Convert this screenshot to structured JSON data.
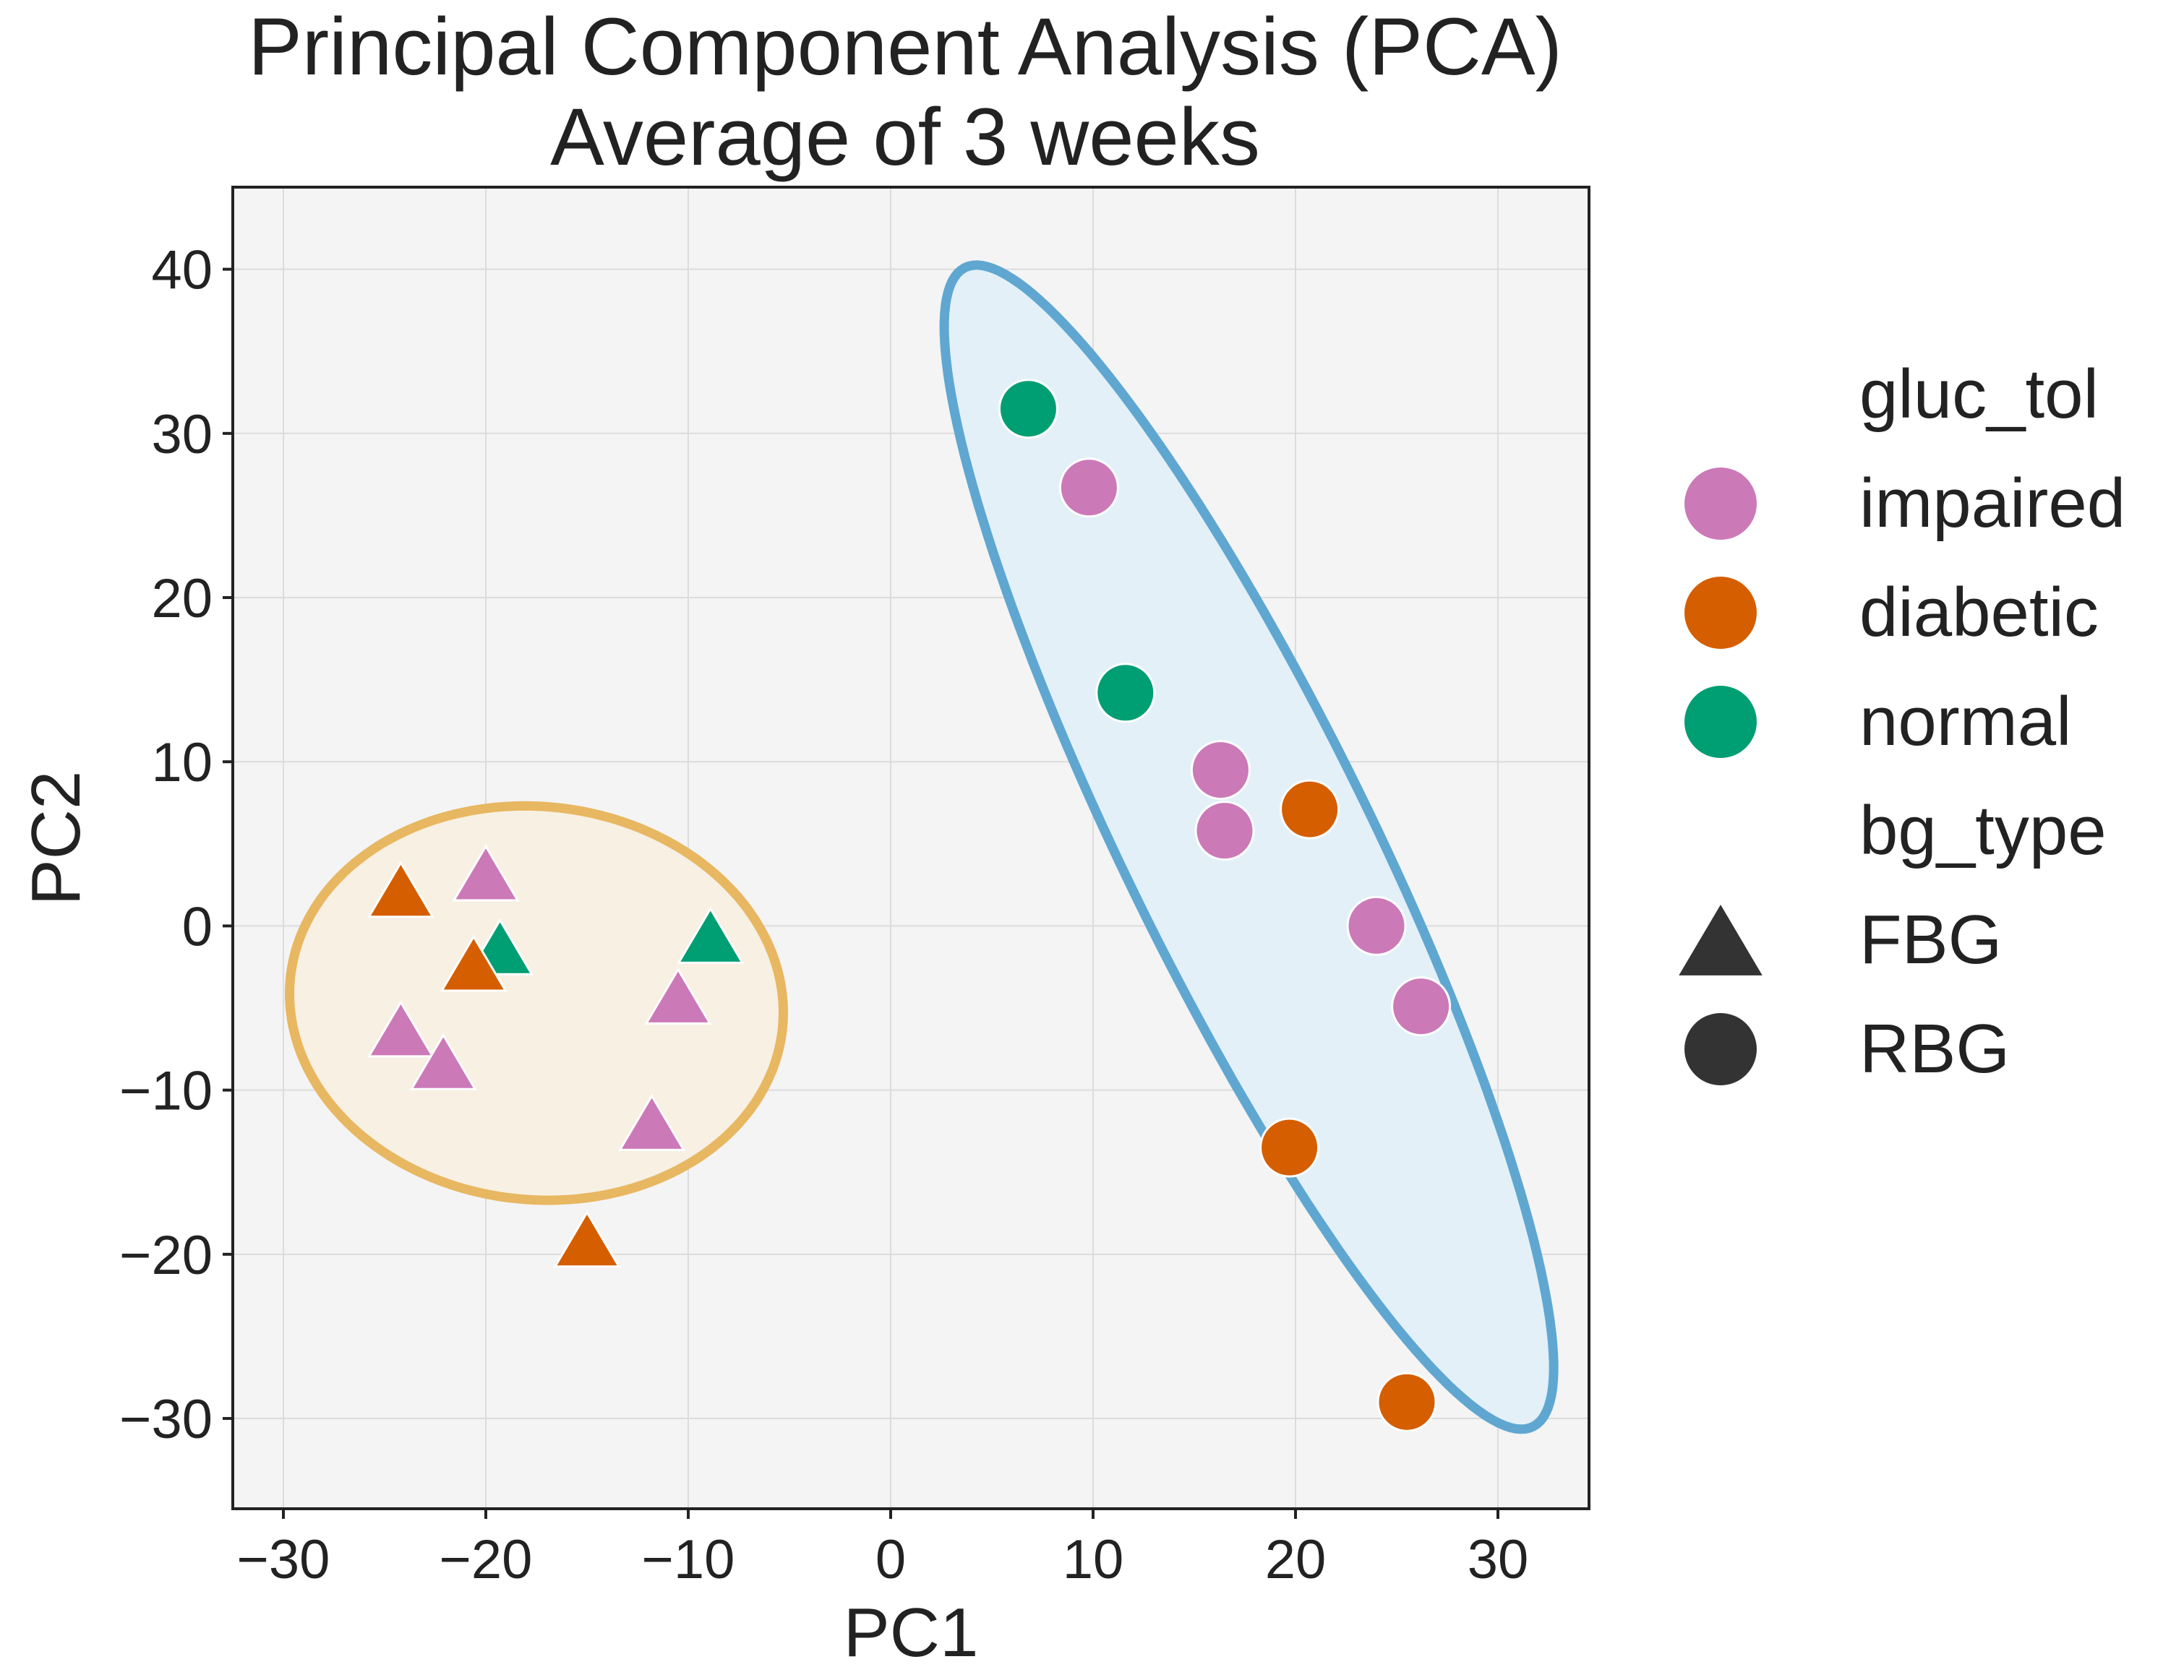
{
  "chart_data": {
    "type": "scatter",
    "title": "Principal Component Analysis (PCA)",
    "subtitle": "Average of 3 weeks",
    "xlabel": "PC1",
    "ylabel": "PC2",
    "xlim": [
      -32.5,
      34.5
    ],
    "ylim": [
      -35.5,
      45
    ],
    "xticks": [
      -30,
      -20,
      -10,
      0,
      10,
      20,
      30
    ],
    "yticks": [
      -30,
      -20,
      -10,
      0,
      10,
      20,
      30,
      40
    ],
    "xtick_labels": [
      "−30",
      "−20",
      "−10",
      "0",
      "10",
      "20",
      "30"
    ],
    "ytick_labels": [
      "−30",
      "−20",
      "−10",
      "0",
      "10",
      "20",
      "30",
      "40"
    ],
    "grid": true,
    "legend_position": "right, outside plot",
    "legend": {
      "hue_title": "gluc_tol",
      "hue_entries": [
        {
          "label": "impaired",
          "color": "#cc79b8"
        },
        {
          "label": "diabetic",
          "color": "#d55e00"
        },
        {
          "label": "normal",
          "color": "#009e73"
        }
      ],
      "style_title": "bg_type",
      "style_entries": [
        {
          "label": "FBG",
          "marker": "triangle",
          "color": "#333333"
        },
        {
          "label": "RBG",
          "marker": "circle",
          "color": "#333333"
        }
      ]
    },
    "colors": {
      "impaired": "#cc79b8",
      "diabetic": "#d55e00",
      "normal": "#009e73"
    },
    "points": [
      {
        "x": -24.2,
        "y": 2.0,
        "gluc_tol": "diabetic",
        "bg_type": "FBG"
      },
      {
        "x": -20.0,
        "y": 3.0,
        "gluc_tol": "impaired",
        "bg_type": "FBG"
      },
      {
        "x": -19.3,
        "y": -1.5,
        "gluc_tol": "normal",
        "bg_type": "FBG"
      },
      {
        "x": -20.6,
        "y": -2.5,
        "gluc_tol": "diabetic",
        "bg_type": "FBG"
      },
      {
        "x": -24.2,
        "y": -6.5,
        "gluc_tol": "impaired",
        "bg_type": "FBG"
      },
      {
        "x": -22.1,
        "y": -8.5,
        "gluc_tol": "impaired",
        "bg_type": "FBG"
      },
      {
        "x": -10.5,
        "y": -4.5,
        "gluc_tol": "impaired",
        "bg_type": "FBG"
      },
      {
        "x": -8.9,
        "y": -0.8,
        "gluc_tol": "normal",
        "bg_type": "FBG"
      },
      {
        "x": -11.8,
        "y": -12.2,
        "gluc_tol": "impaired",
        "bg_type": "FBG"
      },
      {
        "x": -15.0,
        "y": -19.3,
        "gluc_tol": "diabetic",
        "bg_type": "FBG"
      },
      {
        "x": 6.8,
        "y": 31.5,
        "gluc_tol": "normal",
        "bg_type": "RBG"
      },
      {
        "x": 9.8,
        "y": 26.7,
        "gluc_tol": "impaired",
        "bg_type": "RBG"
      },
      {
        "x": 11.6,
        "y": 14.2,
        "gluc_tol": "normal",
        "bg_type": "RBG"
      },
      {
        "x": 16.3,
        "y": 9.5,
        "gluc_tol": "impaired",
        "bg_type": "RBG"
      },
      {
        "x": 16.5,
        "y": 5.8,
        "gluc_tol": "impaired",
        "bg_type": "RBG"
      },
      {
        "x": 20.7,
        "y": 7.1,
        "gluc_tol": "diabetic",
        "bg_type": "RBG"
      },
      {
        "x": 24.0,
        "y": 0.0,
        "gluc_tol": "impaired",
        "bg_type": "RBG"
      },
      {
        "x": 26.2,
        "y": -4.9,
        "gluc_tol": "impaired",
        "bg_type": "RBG"
      },
      {
        "x": 19.7,
        "y": -13.5,
        "gluc_tol": "diabetic",
        "bg_type": "RBG"
      },
      {
        "x": 25.5,
        "y": -29.0,
        "gluc_tol": "diabetic",
        "bg_type": "RBG"
      }
    ],
    "ellipses": [
      {
        "group": "FBG",
        "center": [
          -17.5,
          -4.7
        ],
        "radii": [
          12.4,
          11.8
        ],
        "angle_deg": -36,
        "stroke": "#e8b761",
        "fill": "#f7f0e3"
      },
      {
        "group": "RBG",
        "center": [
          17.7,
          4.8
        ],
        "radii": [
          38.0,
          6.3
        ],
        "angle_deg": -68.6,
        "stroke": "#5fa7d1",
        "fill": "#e3f0f8"
      }
    ]
  }
}
